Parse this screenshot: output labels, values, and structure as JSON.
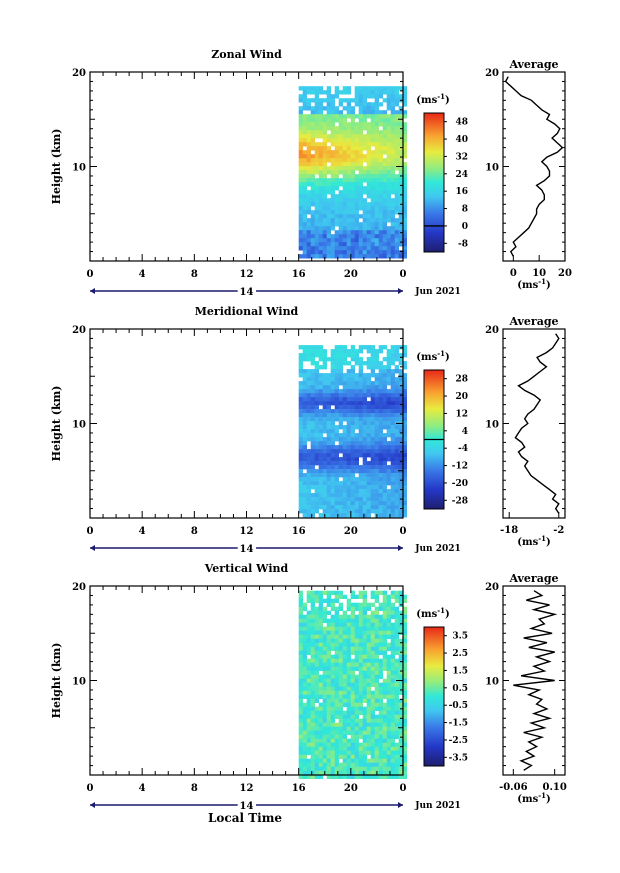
{
  "figure": {
    "xlabel": "Local Time",
    "date_label": "Jun 2021",
    "day_label": "14",
    "unit_label": "(ms",
    "unit_exp": "-1",
    "unit_close": ")",
    "ylabel": "Height (km)",
    "avg_title": "Average"
  },
  "chart_data": [
    {
      "type": "heatmap",
      "title": "Zonal Wind",
      "xlabel": "Local Time",
      "ylabel": "Height (km)",
      "x_ticks": [
        "0",
        "4",
        "8",
        "12",
        "16",
        "20",
        "0"
      ],
      "y_ticks": [
        "10",
        "20"
      ],
      "xlim": [
        0,
        24
      ],
      "ylim": [
        0,
        20
      ],
      "data_x_range": [
        16,
        24
      ],
      "data_y_range": [
        0.5,
        18.5
      ],
      "colorbar": {
        "unit": "ms-1",
        "ticks": [
          "48",
          "40",
          "32",
          "24",
          "16",
          "8",
          "0",
          "-8"
        ],
        "range": [
          -12,
          52
        ],
        "zero_line": 0
      },
      "profile": {
        "title": "Average",
        "x_ticks": [
          "0",
          "10",
          "20"
        ],
        "xlim": [
          -4,
          20
        ],
        "heights": [
          0.5,
          1,
          1.5,
          2,
          2.5,
          3,
          3.5,
          4,
          4.5,
          5,
          5.5,
          6,
          6.5,
          7,
          7.5,
          8,
          8.5,
          9,
          9.5,
          10,
          10.5,
          11,
          11.5,
          12,
          12.5,
          13,
          13.5,
          14,
          14.5,
          15,
          15.5,
          16,
          16.5,
          17,
          17.5,
          18,
          18.5,
          19,
          19.5
        ],
        "values": [
          0,
          -1,
          1,
          0,
          2,
          4,
          6,
          7,
          8,
          9,
          9,
          10,
          12,
          12,
          11,
          9,
          12,
          14,
          14,
          13,
          11,
          13,
          17,
          19,
          17,
          15,
          17,
          18,
          16,
          13,
          14,
          11,
          9,
          7,
          3,
          1,
          -1,
          -3,
          -2
        ]
      }
    },
    {
      "type": "heatmap",
      "title": "Meridional Wind",
      "xlabel": "Local Time",
      "ylabel": "Height (km)",
      "x_ticks": [
        "0",
        "4",
        "8",
        "12",
        "16",
        "20",
        "0"
      ],
      "y_ticks": [
        "10",
        "20"
      ],
      "xlim": [
        0,
        24
      ],
      "ylim": [
        0,
        20
      ],
      "data_x_range": [
        16,
        24
      ],
      "data_y_range": [
        0.3,
        18.3
      ],
      "colorbar": {
        "unit": "ms-1",
        "ticks": [
          "28",
          "20",
          "12",
          "4",
          "-4",
          "-12",
          "-20",
          "-28"
        ],
        "range": [
          -32,
          32
        ],
        "zero_line": 0
      },
      "profile": {
        "title": "Average",
        "x_ticks": [
          "-18",
          "-2"
        ],
        "xlim": [
          -20,
          0
        ],
        "heights": [
          0.5,
          1,
          1.5,
          2,
          2.5,
          3,
          3.5,
          4,
          4.5,
          5,
          5.5,
          6,
          6.5,
          7,
          7.5,
          8,
          8.5,
          9,
          9.5,
          10,
          10.5,
          11,
          11.5,
          12,
          12.5,
          13,
          13.5,
          14,
          14.5,
          15,
          15.5,
          16,
          16.5,
          17,
          17.5,
          18,
          18.5,
          19,
          19.5
        ],
        "values": [
          -2,
          -3,
          -2,
          -4,
          -3,
          -5,
          -7,
          -9,
          -11,
          -12,
          -13,
          -12,
          -14,
          -15,
          -13,
          -14,
          -16,
          -15,
          -14,
          -12,
          -13,
          -12,
          -10,
          -9,
          -8,
          -10,
          -13,
          -15,
          -12,
          -10,
          -8,
          -6,
          -8,
          -9,
          -6,
          -4,
          -3,
          -2,
          -3
        ]
      }
    },
    {
      "type": "heatmap",
      "title": "Vertical Wind",
      "xlabel": "Local Time",
      "ylabel": "Height (km)",
      "x_ticks": [
        "0",
        "4",
        "8",
        "12",
        "16",
        "20",
        "0"
      ],
      "y_ticks": [
        "10",
        "20"
      ],
      "xlim": [
        0,
        24
      ],
      "ylim": [
        0,
        20
      ],
      "data_x_range": [
        16,
        24
      ],
      "data_y_range": [
        0,
        19.5
      ],
      "colorbar": {
        "unit": "ms-1",
        "ticks": [
          "3.5",
          "2.5",
          "1.5",
          "0.5",
          "-0.5",
          "-1.5",
          "-2.5",
          "-3.5"
        ],
        "range": [
          -4,
          4
        ]
      },
      "profile": {
        "title": "Average",
        "x_ticks": [
          "-0.06",
          "0.10"
        ],
        "xlim": [
          -0.1,
          0.14
        ],
        "heights": [
          0.5,
          1,
          1.5,
          2,
          2.5,
          3,
          3.5,
          4,
          4.5,
          5,
          5.5,
          6,
          6.5,
          7,
          7.5,
          8,
          8.5,
          9,
          9.5,
          10,
          10.5,
          11,
          11.5,
          12,
          12.5,
          13,
          13.5,
          14,
          14.5,
          15,
          15.5,
          16,
          16.5,
          17,
          17.5,
          18,
          18.5,
          19,
          19.5
        ],
        "values": [
          -0.02,
          0.01,
          -0.03,
          0.02,
          -0.01,
          0.03,
          0.0,
          0.05,
          -0.02,
          0.06,
          0.01,
          0.08,
          0.02,
          0.07,
          0.03,
          0.05,
          0.0,
          0.04,
          -0.06,
          0.1,
          -0.03,
          0.06,
          0.02,
          0.08,
          0.03,
          0.1,
          0.0,
          0.07,
          -0.02,
          0.09,
          0.01,
          0.06,
          0.04,
          0.1,
          0.02,
          0.08,
          -0.01,
          0.05,
          0.02
        ]
      }
    }
  ]
}
